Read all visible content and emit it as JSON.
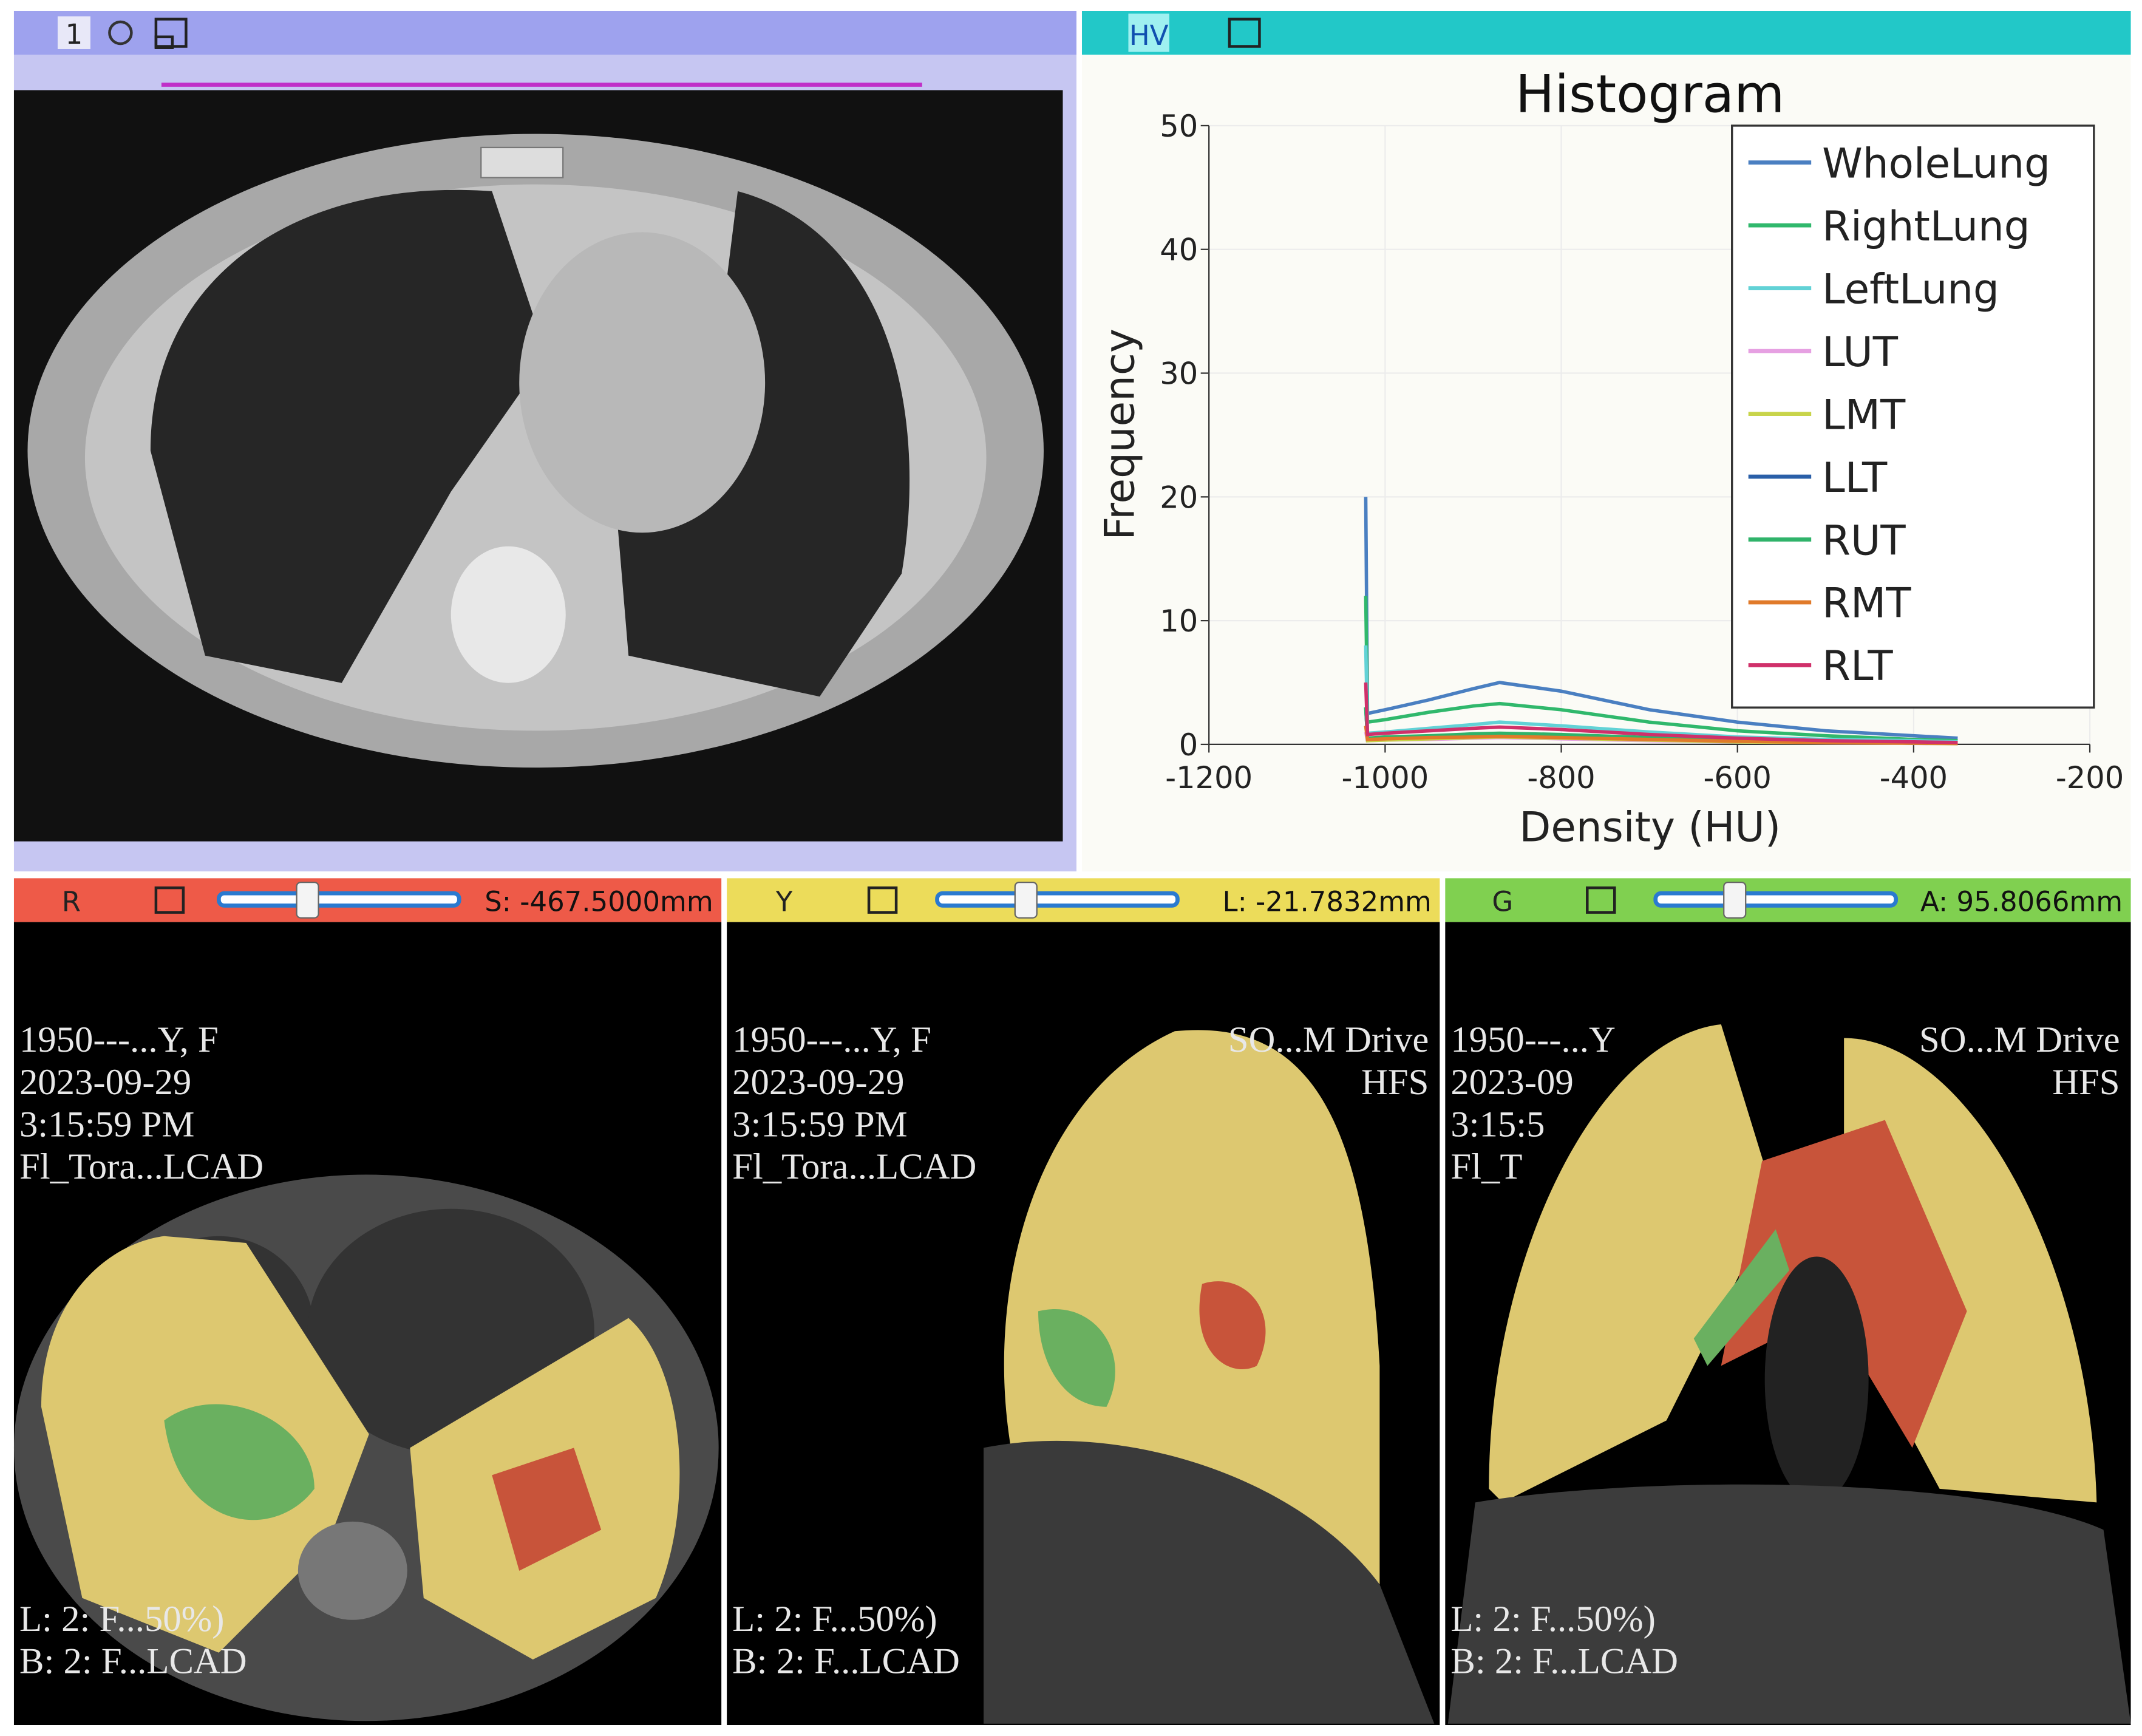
{
  "views": {
    "top_left": {
      "label": "1"
    },
    "top_right": {
      "label": "HV"
    },
    "slices": [
      {
        "label": "R",
        "offset": "S: -467.5000mm",
        "overlay_top_left": [
          "1950---...Y, F",
          "2023-09-29",
          "3:15:59 PM",
          "Fl_Tora...LCAD"
        ],
        "overlay_bottom_left": [
          "L: 2: F...50%)",
          "B: 2: F...LCAD"
        ]
      },
      {
        "label": "Y",
        "offset": "L: -21.7832mm",
        "overlay_top_left": [
          "1950---...Y, F",
          "2023-09-29",
          "3:15:59 PM",
          "Fl_Tora...LCAD"
        ],
        "overlay_top_right": [
          "SO...M Drive",
          "HFS"
        ],
        "overlay_bottom_left": [
          "L: 2: F...50%)",
          "B: 2: F...LCAD"
        ]
      },
      {
        "label": "G",
        "offset": "A: 95.8066mm",
        "overlay_top_left": [
          "1950---...Y",
          "2023-09",
          "3:15:5",
          "Fl_T"
        ],
        "overlay_top_right": [
          "SO...M Drive",
          "HFS"
        ],
        "overlay_bottom_left": [
          "L: 2: F...50%)",
          "B: 2: F...LCAD"
        ]
      }
    ]
  },
  "chart_data": {
    "type": "line",
    "title": "Histogram",
    "x_label": "Density (HU)",
    "y_label": "Frequency",
    "x": [
      -1022,
      -1020,
      -1000,
      -950,
      -900,
      -870,
      -800,
      -700,
      -600,
      -500,
      -400,
      -350
    ],
    "series": [
      {
        "name": "WholeLung",
        "color": "#4a7fc1",
        "values": [
          20,
          2.5,
          2.8,
          3.6,
          4.5,
          5,
          4.3,
          2.8,
          1.8,
          1.1,
          0.7,
          0.5
        ]
      },
      {
        "name": "RightLung",
        "color": "#30b86c",
        "values": [
          12,
          1.8,
          2,
          2.6,
          3.1,
          3.3,
          2.8,
          1.8,
          1.1,
          0.7,
          0.4,
          0.3
        ]
      },
      {
        "name": "LeftLung",
        "color": "#62d2d6",
        "values": [
          8,
          0.9,
          1,
          1.3,
          1.6,
          1.8,
          1.5,
          1,
          0.6,
          0.4,
          0.3,
          0.2
        ]
      },
      {
        "name": "LUT",
        "color": "#e6a0e2",
        "values": [
          1,
          0.3,
          0.35,
          0.4,
          0.5,
          0.55,
          0.45,
          0.3,
          0.2,
          0.12,
          0.08,
          0.05
        ]
      },
      {
        "name": "LMT",
        "color": "#c8d44a",
        "values": [
          1.5,
          0.3,
          0.35,
          0.45,
          0.55,
          0.6,
          0.5,
          0.35,
          0.2,
          0.14,
          0.09,
          0.06
        ]
      },
      {
        "name": "LLT",
        "color": "#2a5fa8",
        "values": [
          3,
          0.4,
          0.5,
          0.6,
          0.7,
          0.8,
          0.7,
          0.5,
          0.3,
          0.2,
          0.1,
          0.1
        ]
      },
      {
        "name": "RUT",
        "color": "#2fb36a",
        "values": [
          3,
          0.5,
          0.6,
          0.7,
          0.85,
          0.9,
          0.8,
          0.55,
          0.35,
          0.22,
          0.12,
          0.1
        ]
      },
      {
        "name": "RMT",
        "color": "#e07a2a",
        "values": [
          1.5,
          0.4,
          0.45,
          0.55,
          0.6,
          0.65,
          0.55,
          0.4,
          0.25,
          0.15,
          0.1,
          0.08
        ]
      },
      {
        "name": "RLT",
        "color": "#d0306a",
        "values": [
          5,
          0.8,
          0.9,
          1.1,
          1.3,
          1.4,
          1.2,
          0.8,
          0.5,
          0.3,
          0.2,
          0.15
        ]
      }
    ],
    "xlim": [
      -1200,
      -200
    ],
    "xticks": [
      -1200,
      -1000,
      -800,
      -600,
      -400,
      -200
    ],
    "ylim": [
      0,
      50
    ],
    "yticks": [
      0,
      10,
      20,
      30,
      40,
      50
    ],
    "grid": true,
    "legend": "upper right"
  }
}
